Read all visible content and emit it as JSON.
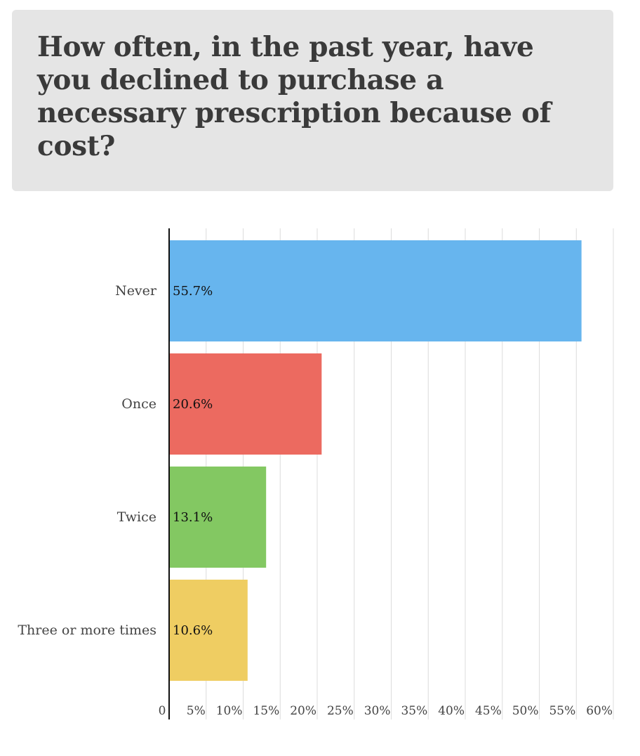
{
  "chart_data": {
    "type": "bar",
    "orientation": "horizontal",
    "title": "How often, in the past year, have you declined to purchase a necessary prescription because of cost?",
    "categories": [
      "Never",
      "Once",
      "Twice",
      "Three or more times"
    ],
    "values": [
      55.7,
      20.6,
      13.1,
      10.6
    ],
    "value_labels": [
      "55.7%",
      "20.6%",
      "13.1%",
      "10.6%"
    ],
    "colors": [
      "#67b5ee",
      "#ec6a60",
      "#83c862",
      "#efcd62"
    ],
    "xlim": [
      0,
      60
    ],
    "x_ticks": [
      "0",
      "5%",
      "10%",
      "15%",
      "20%",
      "25%",
      "30%",
      "35%",
      "40%",
      "45%",
      "50%",
      "55%",
      "60%"
    ],
    "grid": true,
    "legend": "none"
  }
}
